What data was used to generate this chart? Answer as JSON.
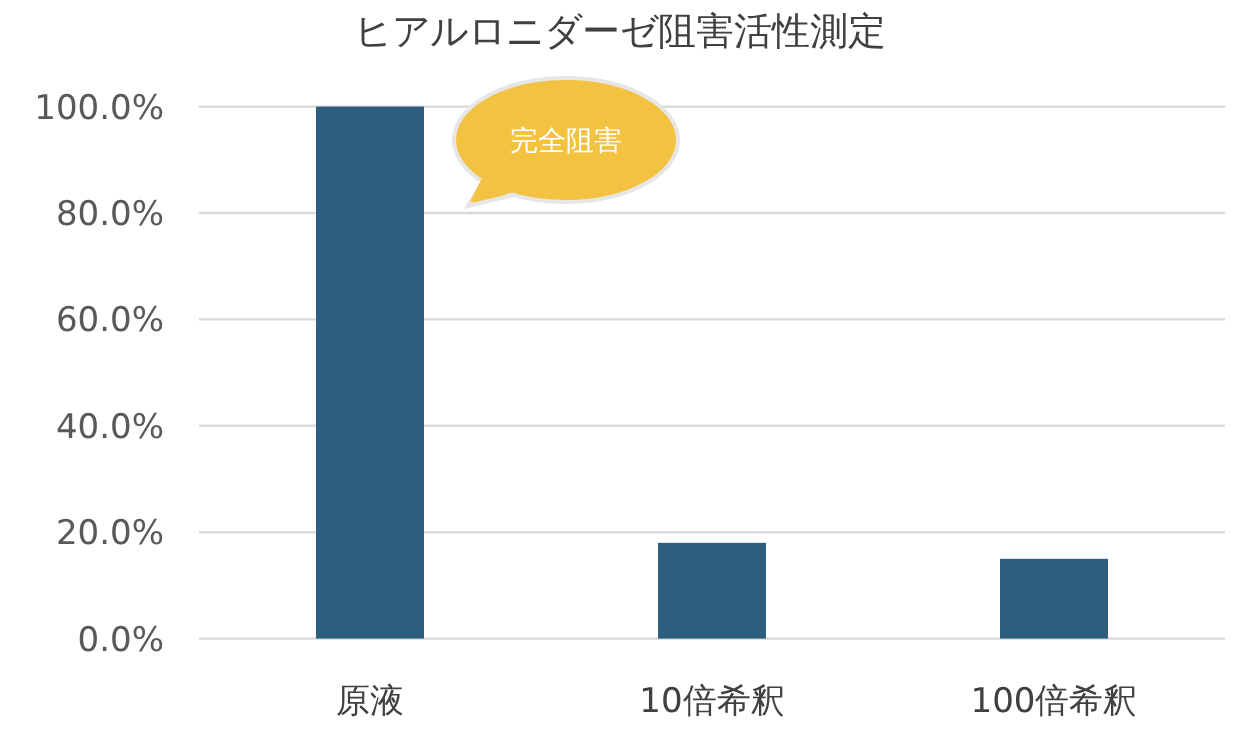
{
  "chart_data": {
    "type": "bar",
    "title": "ヒアルロニダーゼ阻害活性測定",
    "categories": [
      "原液",
      "10倍希釈",
      "100倍希釈"
    ],
    "values": [
      100,
      18,
      15
    ],
    "color": "#2e5e7e",
    "ylim": [
      0,
      100
    ],
    "yticks": [
      {
        "value": 0,
        "label": "0.0%"
      },
      {
        "value": 20,
        "label": "20.0%"
      },
      {
        "value": 40,
        "label": "40.0%"
      },
      {
        "value": 60,
        "label": "60.0%"
      },
      {
        "value": 80,
        "label": "80.0%"
      },
      {
        "value": 100,
        "label": "100.0%"
      }
    ],
    "grid": "y",
    "annotations": [
      "完全阻害"
    ]
  }
}
